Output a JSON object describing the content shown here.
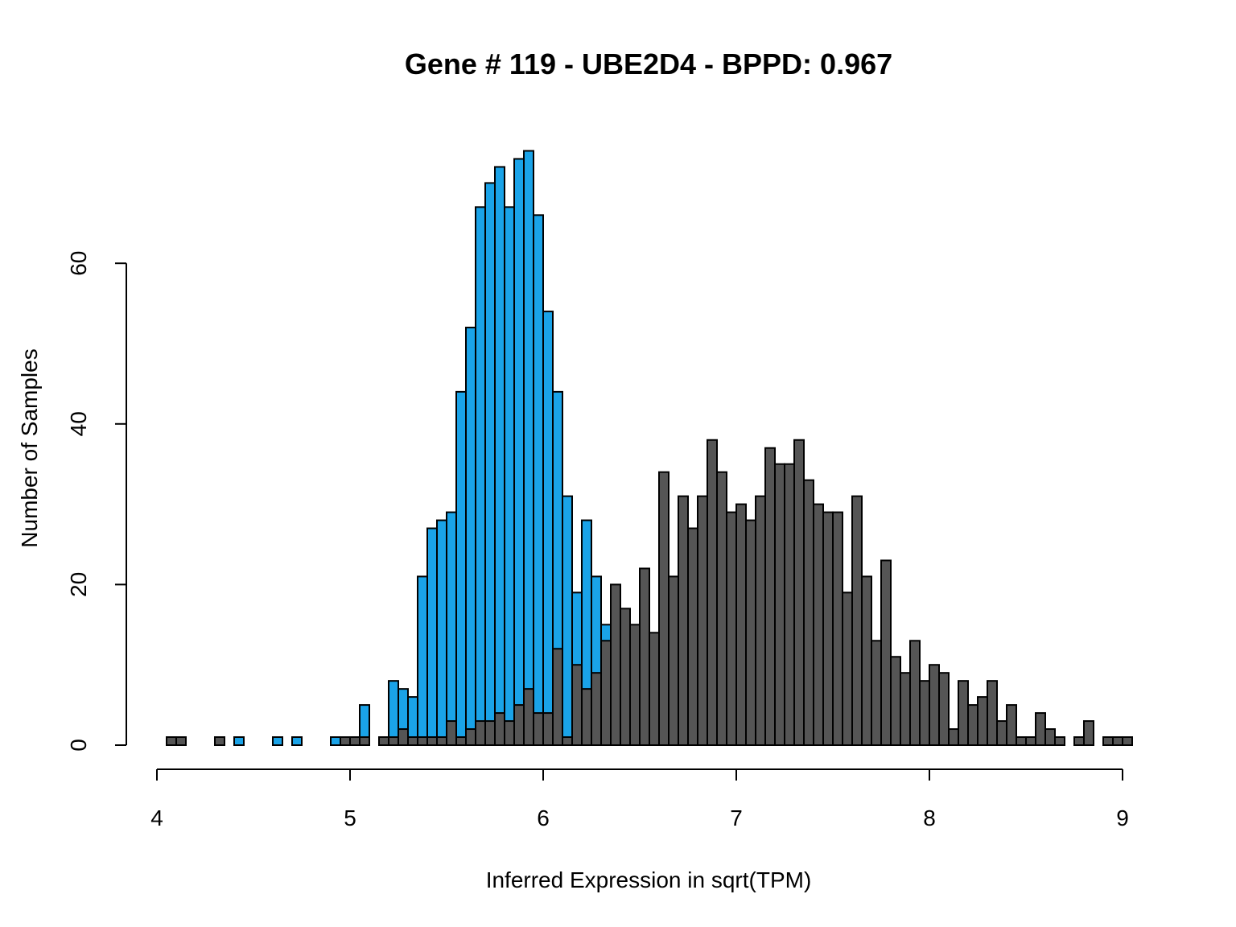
{
  "chart_data": {
    "type": "bar",
    "title": "Gene # 119 - UBE2D4 - BPPD: 0.967",
    "xlabel": "Inferred Expression in sqrt(TPM)",
    "ylabel": "Number of Samples",
    "xlim": [
      4.05,
      9.05
    ],
    "ylim": [
      0,
      74
    ],
    "x_ticks": [
      "4",
      "5",
      "6",
      "7",
      "8",
      "9"
    ],
    "y_ticks": [
      "0",
      "20",
      "40",
      "60"
    ],
    "bin_start": 4.05,
    "bin_width": 0.05,
    "grid": false,
    "series": [
      {
        "color": "#1AA3E8",
        "values": [
          1,
          0,
          0,
          0,
          0,
          1,
          0,
          1,
          0,
          0,
          0,
          1,
          0,
          1,
          0,
          0,
          0,
          1,
          0,
          1,
          5,
          0,
          1,
          8,
          7,
          6,
          21,
          27,
          28,
          29,
          44,
          52,
          67,
          70,
          72,
          67,
          73,
          74,
          66,
          54,
          44,
          31,
          19,
          28,
          21,
          15,
          14,
          10,
          5,
          4,
          3,
          3,
          3,
          3,
          3,
          3,
          3,
          3,
          3,
          1,
          1,
          1,
          2,
          1,
          0,
          0,
          0,
          0,
          0,
          0,
          0,
          0,
          0,
          0,
          0,
          0,
          0,
          0,
          0,
          0,
          0,
          0,
          0,
          0,
          0,
          0,
          0,
          0,
          0,
          0,
          0,
          0,
          0,
          0,
          0,
          0,
          0,
          0,
          0,
          0
        ]
      },
      {
        "color": "#555555",
        "values": [
          1,
          1,
          0,
          0,
          0,
          1,
          0,
          0,
          0,
          0,
          0,
          0,
          0,
          0,
          0,
          0,
          0,
          0,
          1,
          1,
          1,
          0,
          1,
          1,
          2,
          1,
          1,
          1,
          1,
          3,
          1,
          2,
          3,
          3,
          4,
          3,
          5,
          7,
          4,
          4,
          12,
          1,
          10,
          7,
          9,
          13,
          20,
          17,
          15,
          22,
          14,
          34,
          21,
          31,
          27,
          31,
          38,
          34,
          29,
          30,
          28,
          31,
          37,
          35,
          35,
          38,
          33,
          30,
          29,
          29,
          19,
          31,
          21,
          13,
          23,
          11,
          9,
          13,
          8,
          10,
          9,
          2,
          8,
          5,
          6,
          8,
          3,
          5,
          1,
          1,
          4,
          2,
          1,
          0,
          1,
          3,
          0,
          1,
          1,
          1
        ]
      }
    ]
  }
}
